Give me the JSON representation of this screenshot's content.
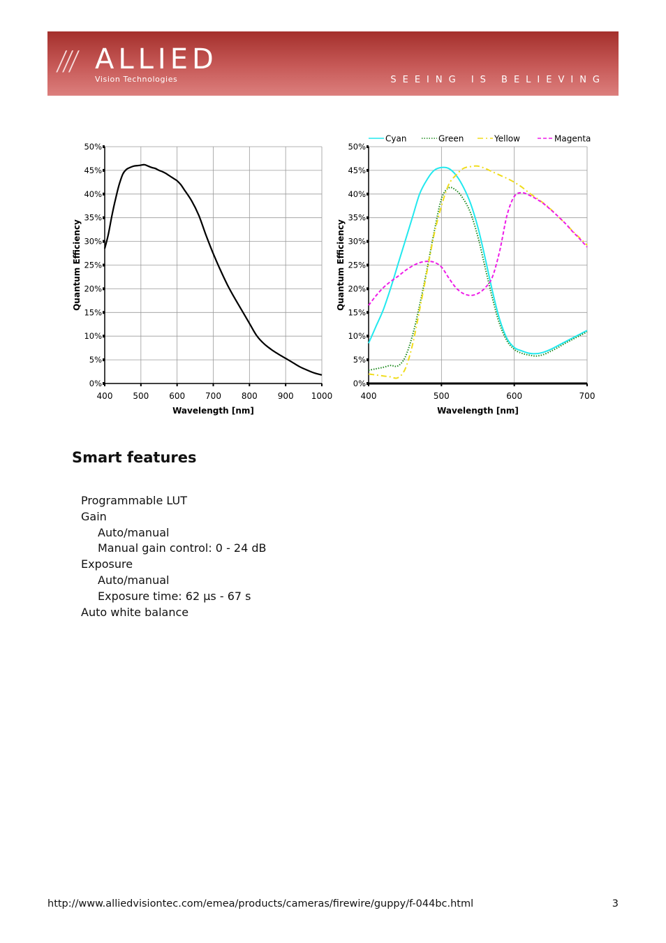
{
  "header": {
    "logo_slashes": "///",
    "logo_word": "ALLIED",
    "logo_sub": "Vision Technologies",
    "tagline": "SEEING IS BELIEVING"
  },
  "chart_data": [
    {
      "type": "line",
      "xlabel": "Wavelength [nm]",
      "ylabel": "Quantum Efficiency",
      "xlim": [
        400,
        1000
      ],
      "ylim": [
        0,
        50
      ],
      "xticks": [
        "400",
        "500",
        "600",
        "700",
        "800",
        "900",
        "1000"
      ],
      "yticks": [
        "0%",
        "5%",
        "10%",
        "15%",
        "20%",
        "25%",
        "30%",
        "35%",
        "40%",
        "45%",
        "50%"
      ],
      "grid": true,
      "series": [
        {
          "color": "#000000",
          "x": [
            400,
            410,
            420,
            430,
            440,
            450,
            460,
            470,
            480,
            490,
            500,
            510,
            520,
            530,
            540,
            550,
            560,
            570,
            580,
            590,
            600,
            610,
            620,
            640,
            660,
            680,
            700,
            720,
            740,
            760,
            780,
            800,
            820,
            840,
            860,
            880,
            900,
            920,
            940,
            960,
            980,
            1000
          ],
          "y": [
            28.5,
            31.5,
            35.5,
            39.0,
            42.0,
            44.2,
            45.2,
            45.6,
            45.9,
            46.0,
            46.1,
            46.2,
            45.9,
            45.6,
            45.4,
            45.0,
            44.7,
            44.3,
            43.8,
            43.3,
            42.8,
            42.0,
            40.9,
            38.6,
            35.5,
            31.3,
            27.4,
            23.9,
            20.7,
            17.9,
            15.3,
            12.7,
            10.1,
            8.4,
            7.2,
            6.2,
            5.3,
            4.4,
            3.5,
            2.8,
            2.2,
            1.8
          ]
        }
      ]
    },
    {
      "type": "line",
      "xlabel": "Wavelength [nm]",
      "ylabel": "Quantum Efficiency",
      "xlim": [
        400,
        700
      ],
      "ylim": [
        0,
        50
      ],
      "xticks": [
        "400",
        "500",
        "600",
        "700"
      ],
      "yticks": [
        "0%",
        "5%",
        "10%",
        "15%",
        "20%",
        "25%",
        "30%",
        "35%",
        "40%",
        "45%",
        "50%"
      ],
      "grid": true,
      "legend": "top",
      "series": [
        {
          "name": "Cyan",
          "color": "#22e8ee",
          "dash": "",
          "x": [
            400,
            410,
            420,
            430,
            440,
            450,
            460,
            470,
            480,
            490,
            500,
            510,
            520,
            530,
            540,
            550,
            560,
            570,
            580,
            590,
            600,
            610,
            620,
            630,
            640,
            650,
            660,
            670,
            680,
            690,
            700
          ],
          "y": [
            8.5,
            12.0,
            15.5,
            20.0,
            25.0,
            30.0,
            35.0,
            40.0,
            43.0,
            45.0,
            45.6,
            45.4,
            44.0,
            41.5,
            38.0,
            33.0,
            26.5,
            19.5,
            13.5,
            9.5,
            7.6,
            6.9,
            6.4,
            6.3,
            6.6,
            7.2,
            8.0,
            8.8,
            9.6,
            10.4,
            11.2
          ]
        },
        {
          "name": "Green",
          "color": "#1d8a1d",
          "dash": "1.5,2",
          "x": [
            400,
            410,
            420,
            430,
            440,
            450,
            460,
            470,
            480,
            490,
            500,
            510,
            520,
            530,
            540,
            550,
            560,
            570,
            580,
            590,
            600,
            610,
            620,
            630,
            640,
            650,
            660,
            670,
            680,
            690,
            700
          ],
          "y": [
            2.8,
            3.1,
            3.4,
            3.8,
            3.7,
            5.5,
            10.0,
            16.5,
            24.0,
            32.0,
            39.0,
            41.3,
            40.8,
            39.0,
            36.0,
            31.0,
            24.5,
            18.0,
            12.5,
            9.0,
            7.2,
            6.4,
            6.0,
            5.8,
            6.1,
            6.8,
            7.6,
            8.5,
            9.3,
            10.1,
            10.9
          ]
        },
        {
          "name": "Yellow",
          "color": "#f0dc1c",
          "dash": "8,4,2,4",
          "x": [
            400,
            410,
            420,
            430,
            440,
            450,
            460,
            470,
            480,
            490,
            500,
            510,
            520,
            530,
            540,
            550,
            560,
            570,
            580,
            590,
            600,
            610,
            620,
            630,
            640,
            650,
            660,
            670,
            680,
            690,
            700
          ],
          "y": [
            2.0,
            1.8,
            1.6,
            1.4,
            1.2,
            3.0,
            8.0,
            15.5,
            23.5,
            31.5,
            37.5,
            42.0,
            44.0,
            45.4,
            45.8,
            45.9,
            45.4,
            44.7,
            44.0,
            43.3,
            42.5,
            41.5,
            40.3,
            39.2,
            38.1,
            36.8,
            35.3,
            33.8,
            32.2,
            30.7,
            29.2
          ]
        },
        {
          "name": "Magenta",
          "color": "#ee1ce8",
          "dash": "5,3",
          "x": [
            400,
            410,
            420,
            430,
            440,
            450,
            460,
            470,
            480,
            490,
            500,
            510,
            520,
            530,
            540,
            550,
            560,
            570,
            580,
            590,
            600,
            610,
            620,
            630,
            640,
            650,
            660,
            670,
            680,
            690,
            700
          ],
          "y": [
            16.5,
            18.5,
            20.2,
            21.5,
            22.6,
            23.8,
            24.8,
            25.5,
            25.8,
            25.6,
            24.6,
            22.3,
            20.2,
            19.0,
            18.6,
            19.0,
            20.2,
            22.5,
            28.0,
            35.5,
            39.5,
            40.3,
            39.8,
            39.0,
            38.0,
            36.7,
            35.3,
            33.8,
            32.1,
            30.5,
            28.8
          ]
        }
      ]
    }
  ],
  "section": {
    "title": "Smart features"
  },
  "features": [
    {
      "text": "Programmable LUT",
      "level": 1
    },
    {
      "text": "Gain",
      "level": 1
    },
    {
      "text": "Auto/manual",
      "level": 2
    },
    {
      "text": "Manual gain control: 0 - 24 dB",
      "level": 2
    },
    {
      "text": "Exposure",
      "level": 1
    },
    {
      "text": "Auto/manual",
      "level": 2
    },
    {
      "text": "Exposure time: 62 µs - 67 s",
      "level": 2
    },
    {
      "text": "Auto white balance",
      "level": 1
    }
  ],
  "footer": {
    "url": "http://www.alliedvisiontec.com/emea/products/cameras/firewire/guppy/f-044bc.html",
    "page": "3"
  }
}
